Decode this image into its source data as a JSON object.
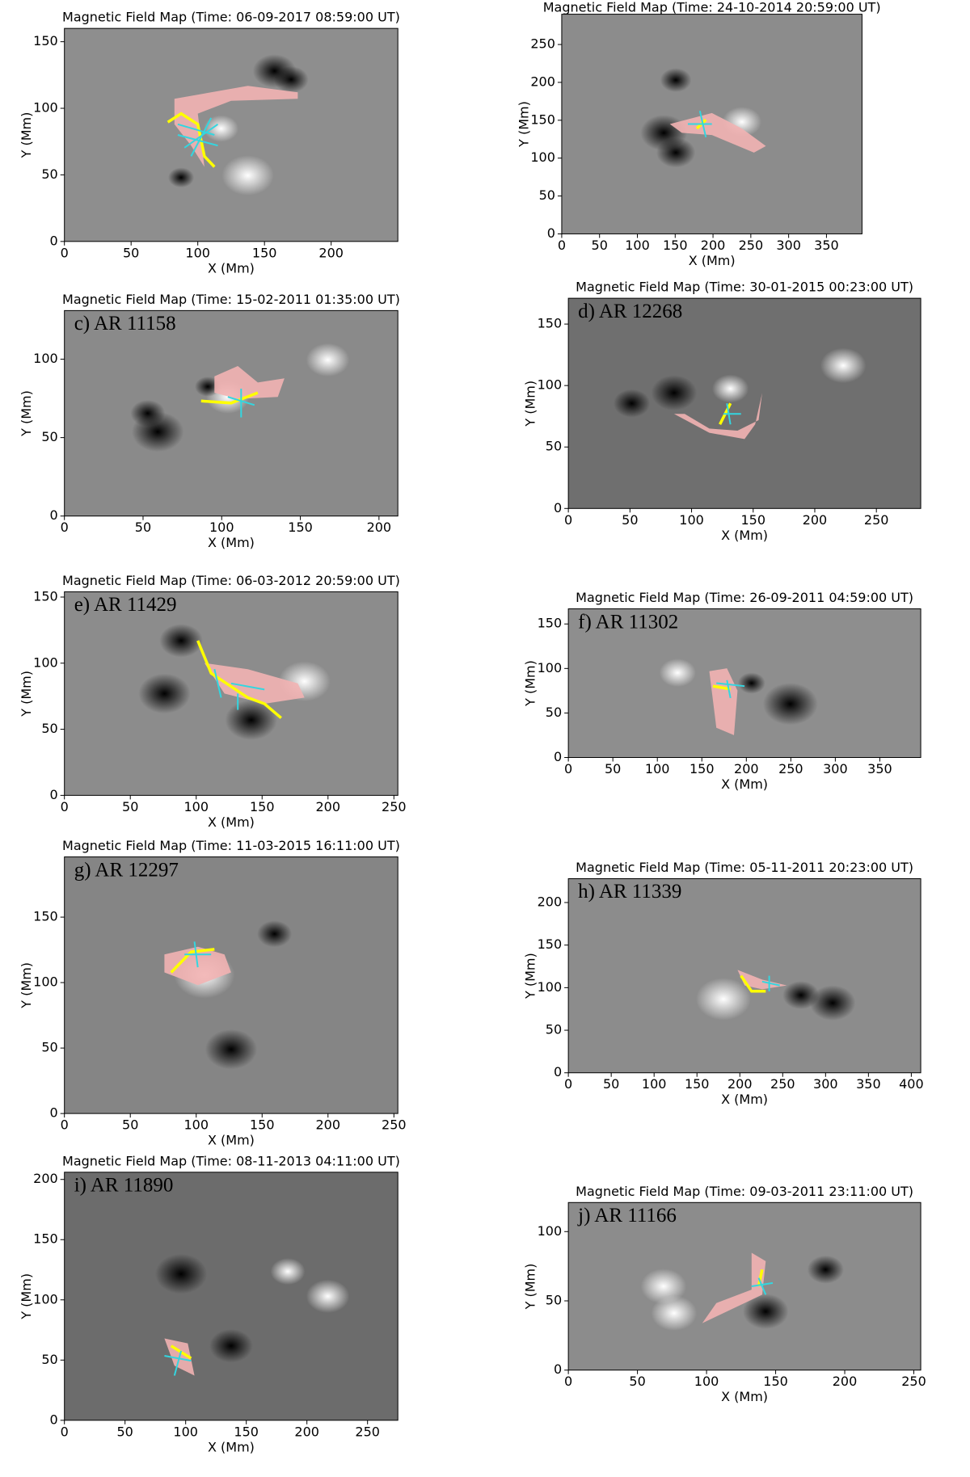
{
  "chart_data": [
    {
      "type": "image",
      "title": "Magnetic Field Map (Time: 06-09-2017 08:59:00 UT)",
      "xlabel": "X (Mm)",
      "ylabel": "Y (Mm)",
      "xlim": [
        0,
        250
      ],
      "ylim": [
        0,
        160
      ],
      "xticks": [
        0,
        50,
        100,
        150,
        200
      ],
      "yticks": [
        0,
        50,
        100,
        150
      ]
    },
    {
      "type": "image",
      "title": "Magnetic Field Map (Time: 24-10-2014 20:59:00 UT)",
      "xlabel": "X (Mm)",
      "ylabel": "Y (Mm)",
      "xlim": [
        0,
        397
      ],
      "ylim": [
        0,
        290
      ],
      "xticks": [
        0,
        50,
        100,
        150,
        200,
        250,
        300,
        350
      ],
      "yticks": [
        0,
        50,
        100,
        150,
        200,
        250
      ]
    },
    {
      "type": "image",
      "title": "Magnetic Field Map (Time: 15-02-2011 01:35:00 UT)",
      "label": "c) AR 11158",
      "xlabel": "X (Mm)",
      "ylabel": "Y (Mm)",
      "xlim": [
        0,
        212
      ],
      "ylim": [
        0,
        131
      ],
      "xticks": [
        0,
        50,
        100,
        150,
        200
      ],
      "yticks": [
        0,
        50,
        100
      ]
    },
    {
      "type": "image",
      "title": "Magnetic Field Map (Time: 30-01-2015 00:23:00 UT)",
      "label": "d) AR 12268",
      "xlabel": "X (Mm)",
      "ylabel": "Y (Mm)",
      "xlim": [
        0,
        286
      ],
      "ylim": [
        0,
        171
      ],
      "xticks": [
        0,
        50,
        100,
        150,
        200,
        250
      ],
      "yticks": [
        0,
        50,
        100,
        150
      ]
    },
    {
      "type": "image",
      "title": "Magnetic Field Map (Time: 06-03-2012 20:59:00 UT)",
      "label": "e) AR 11429",
      "xlabel": "X (Mm)",
      "ylabel": "Y (Mm)",
      "xlim": [
        0,
        253
      ],
      "ylim": [
        0,
        154
      ],
      "xticks": [
        0,
        50,
        100,
        150,
        200,
        250
      ],
      "yticks": [
        0,
        50,
        100,
        150
      ]
    },
    {
      "type": "image",
      "title": "Magnetic Field Map (Time: 26-09-2011 04:59:00 UT)",
      "label": "f) AR 11302",
      "xlabel": "X (Mm)",
      "ylabel": "Y (Mm)",
      "xlim": [
        0,
        396
      ],
      "ylim": [
        0,
        167
      ],
      "xticks": [
        0,
        50,
        100,
        150,
        200,
        250,
        300,
        350
      ],
      "yticks": [
        0,
        50,
        100,
        150
      ]
    },
    {
      "type": "image",
      "title": "Magnetic Field Map (Time: 11-03-2015 16:11:00 UT)",
      "label": "g) AR 12297",
      "xlabel": "X (Mm)",
      "ylabel": "Y (Mm)",
      "xlim": [
        0,
        253
      ],
      "ylim": [
        0,
        196
      ],
      "xticks": [
        0,
        50,
        100,
        150,
        200,
        250
      ],
      "yticks": [
        0,
        50,
        100,
        150
      ]
    },
    {
      "type": "image",
      "title": "Magnetic Field Map (Time: 05-11-2011 20:23:00 UT)",
      "label": "h) AR 11339",
      "xlabel": "X (Mm)",
      "ylabel": "Y (Mm)",
      "xlim": [
        0,
        411
      ],
      "ylim": [
        0,
        228
      ],
      "xticks": [
        0,
        50,
        100,
        150,
        200,
        250,
        300,
        350,
        400
      ],
      "yticks": [
        0,
        50,
        100,
        150,
        200
      ]
    },
    {
      "type": "image",
      "title": "Magnetic Field Map (Time: 08-11-2013 04:11:00 UT)",
      "label": "i) AR 11890",
      "xlabel": "X (Mm)",
      "ylabel": "Y (Mm)",
      "xlim": [
        0,
        275
      ],
      "ylim": [
        0,
        206
      ],
      "xticks": [
        0,
        50,
        100,
        150,
        200,
        250
      ],
      "yticks": [
        0,
        50,
        100,
        150,
        200
      ]
    },
    {
      "type": "image",
      "title": "Magnetic Field Map (Time: 09-03-2011 23:11:00 UT)",
      "label": "j) AR 11166",
      "xlabel": "X (Mm)",
      "ylabel": "Y (Mm)",
      "xlim": [
        0,
        255
      ],
      "ylim": [
        0,
        121
      ],
      "xticks": [
        0,
        50,
        100,
        150,
        200,
        250
      ],
      "yticks": [
        0,
        50,
        100
      ]
    }
  ]
}
